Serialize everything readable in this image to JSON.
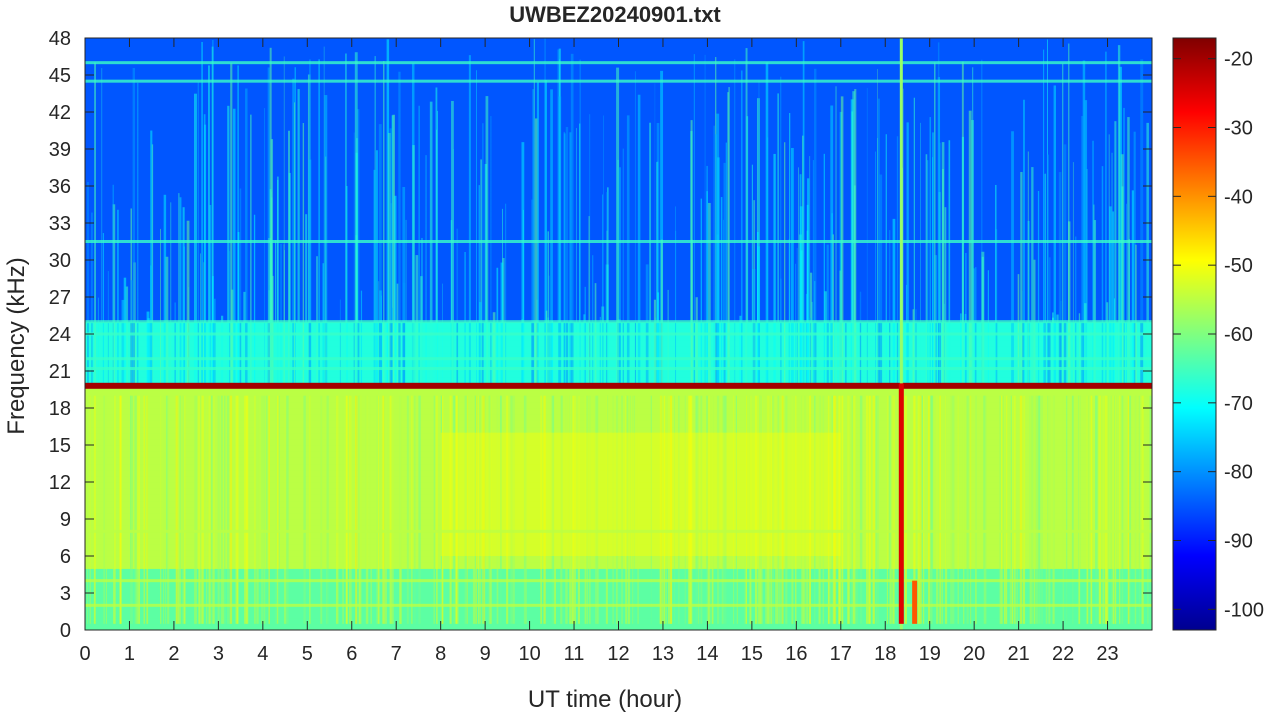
{
  "chart_data": {
    "type": "heatmap",
    "title": "UWBEZ20240901.txt",
    "xlabel": "UT time (hour)",
    "ylabel": "Frequency (kHz)",
    "xlim": [
      0,
      24
    ],
    "ylim": [
      0,
      48
    ],
    "x_ticks": [
      "0",
      "1",
      "2",
      "3",
      "4",
      "5",
      "6",
      "7",
      "8",
      "9",
      "10",
      "11",
      "12",
      "13",
      "14",
      "15",
      "16",
      "17",
      "18",
      "19",
      "20",
      "21",
      "22",
      "23"
    ],
    "y_ticks": [
      "0",
      "3",
      "6",
      "9",
      "12",
      "15",
      "18",
      "21",
      "24",
      "27",
      "30",
      "33",
      "36",
      "39",
      "42",
      "45",
      "48"
    ],
    "colorbar": {
      "colormap": "jet",
      "range": [
        -103,
        -17
      ],
      "ticks": [
        "-20",
        "-30",
        "-40",
        "-50",
        "-60",
        "-70",
        "-80",
        "-90",
        "-100"
      ]
    },
    "features": {
      "strong_band_khz": 19.8,
      "strong_band_level_db": -20,
      "upper_band_level_db": -85,
      "lower_band_level_db": -55,
      "broadband_event_hours": [
        18.35,
        18.65
      ],
      "narrowband_lines_khz": [
        2,
        4,
        8,
        21.2,
        22,
        24,
        25,
        31.5,
        44.5,
        46
      ]
    }
  }
}
